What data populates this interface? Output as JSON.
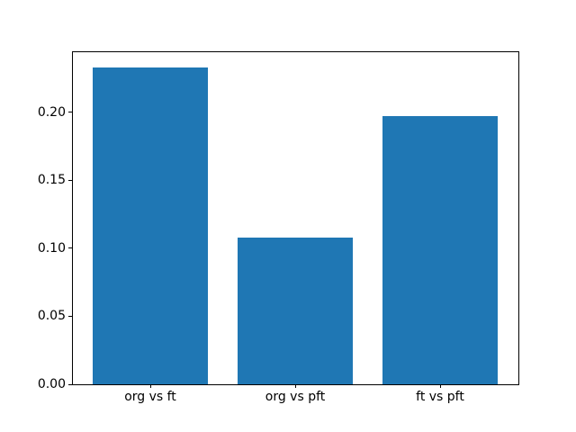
{
  "chart_data": {
    "type": "bar",
    "title": "",
    "xlabel": "",
    "ylabel": "",
    "categories": [
      "org vs ft",
      "org vs pft",
      "ft vs pft"
    ],
    "values": [
      0.233,
      0.108,
      0.197
    ],
    "yticks": [
      0.0,
      0.05,
      0.1,
      0.15,
      0.2
    ],
    "ytick_labels": [
      "0.00",
      "0.05",
      "0.10",
      "0.15",
      "0.20"
    ],
    "ylim": [
      0,
      0.2447
    ],
    "bar_width_fraction": 0.8,
    "bar_color": "#1f77b4",
    "axis_color": "#000000",
    "background_color": "#ffffff",
    "grid": false,
    "legend": null
  }
}
